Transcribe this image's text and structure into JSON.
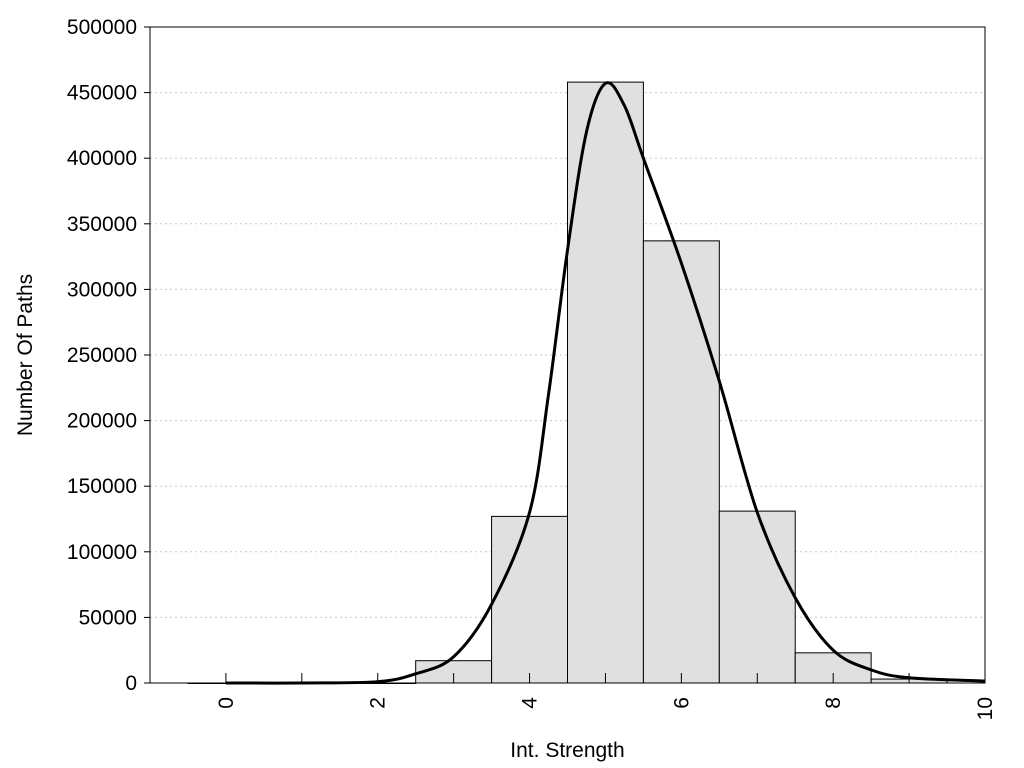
{
  "chart_data": {
    "type": "bar",
    "title": "",
    "xlabel": "Int. Strength",
    "ylabel": "Number Of Paths",
    "xlim": [
      -1,
      10
    ],
    "ylim": [
      0,
      500000
    ],
    "xticks": [
      "0",
      "2",
      "4",
      "6",
      "8",
      "10"
    ],
    "yticks": [
      "0",
      "50000",
      "100000",
      "150000",
      "200000",
      "250000",
      "300000",
      "350000",
      "400000",
      "450000",
      "500000"
    ],
    "grid": "horizontal-dotted",
    "legend": "none",
    "bar_color": "#e0e0e0",
    "line_color": "#000000",
    "bins": [
      {
        "x": 0,
        "value": 0
      },
      {
        "x": 1,
        "value": 0
      },
      {
        "x": 2,
        "value": 0
      },
      {
        "x": 3,
        "value": 17000
      },
      {
        "x": 4,
        "value": 127000
      },
      {
        "x": 5,
        "value": 458000
      },
      {
        "x": 6,
        "value": 337000
      },
      {
        "x": 7,
        "value": 131000
      },
      {
        "x": 8,
        "value": 23000
      },
      {
        "x": 9,
        "value": 3000
      }
    ],
    "curve": {
      "x": [
        0,
        1,
        2,
        2.5,
        3,
        3.5,
        4,
        4.25,
        4.5,
        4.75,
        5,
        5.25,
        5.5,
        6,
        6.5,
        7,
        7.5,
        8,
        8.5,
        9,
        10
      ],
      "y": [
        0,
        0,
        1000,
        7000,
        20000,
        60000,
        130000,
        220000,
        330000,
        420000,
        457000,
        440000,
        400000,
        320000,
        230000,
        130000,
        65000,
        25000,
        10000,
        4000,
        1500
      ]
    }
  }
}
